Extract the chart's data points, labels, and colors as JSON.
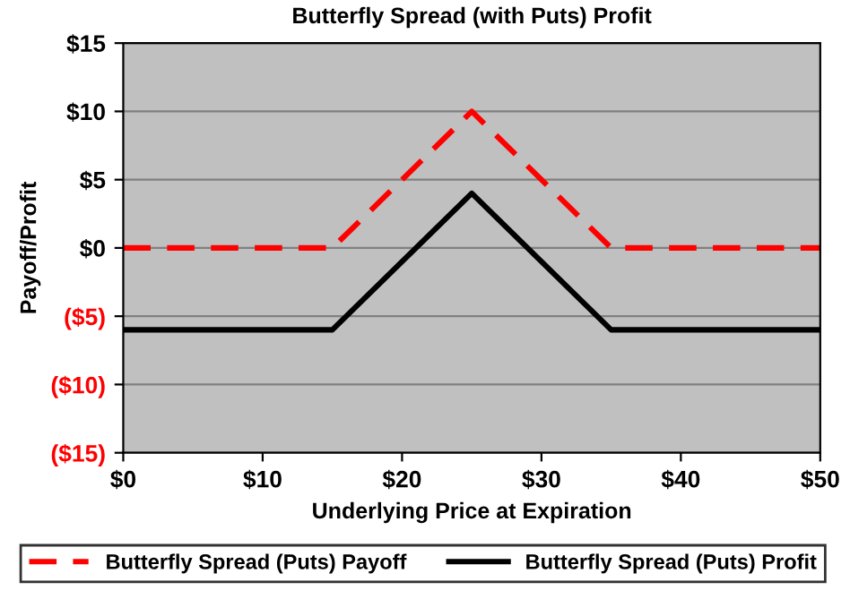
{
  "chart_data": {
    "type": "line",
    "title": "Butterfly Spread (with Puts) Profit",
    "xlabel": "Underlying Price at Expiration",
    "ylabel": "Payoff/Profit",
    "series": [
      {
        "name": "Butterfly Spread (Puts) Payoff",
        "color": "#ff0000",
        "line_style": "dashed",
        "x": [
          0,
          15,
          25,
          35,
          50
        ],
        "values": [
          0,
          0,
          10,
          0,
          0
        ]
      },
      {
        "name": "Butterfly Spread (Puts) Profit",
        "color": "#000000",
        "line_style": "solid",
        "x": [
          0,
          15,
          25,
          35,
          50
        ],
        "values": [
          -6,
          -6,
          4,
          -6,
          -6
        ]
      }
    ],
    "xlim": [
      0,
      50
    ],
    "xticks": [
      {
        "value": 0,
        "label": "$0"
      },
      {
        "value": 10,
        "label": "$10"
      },
      {
        "value": 20,
        "label": "$20"
      },
      {
        "value": 30,
        "label": "$30"
      },
      {
        "value": 40,
        "label": "$40"
      },
      {
        "value": 50,
        "label": "$50"
      }
    ],
    "ylim": [
      -15,
      15
    ],
    "yticks": [
      {
        "value": -15,
        "label": "($15)"
      },
      {
        "value": -10,
        "label": "($10)"
      },
      {
        "value": -5,
        "label": "($5)"
      },
      {
        "value": 0,
        "label": "$0"
      },
      {
        "value": 5,
        "label": "$5"
      },
      {
        "value": 10,
        "label": "$10"
      },
      {
        "value": 15,
        "label": "$15"
      }
    ],
    "grid": "y",
    "legend": "bottom",
    "marker": "none"
  }
}
